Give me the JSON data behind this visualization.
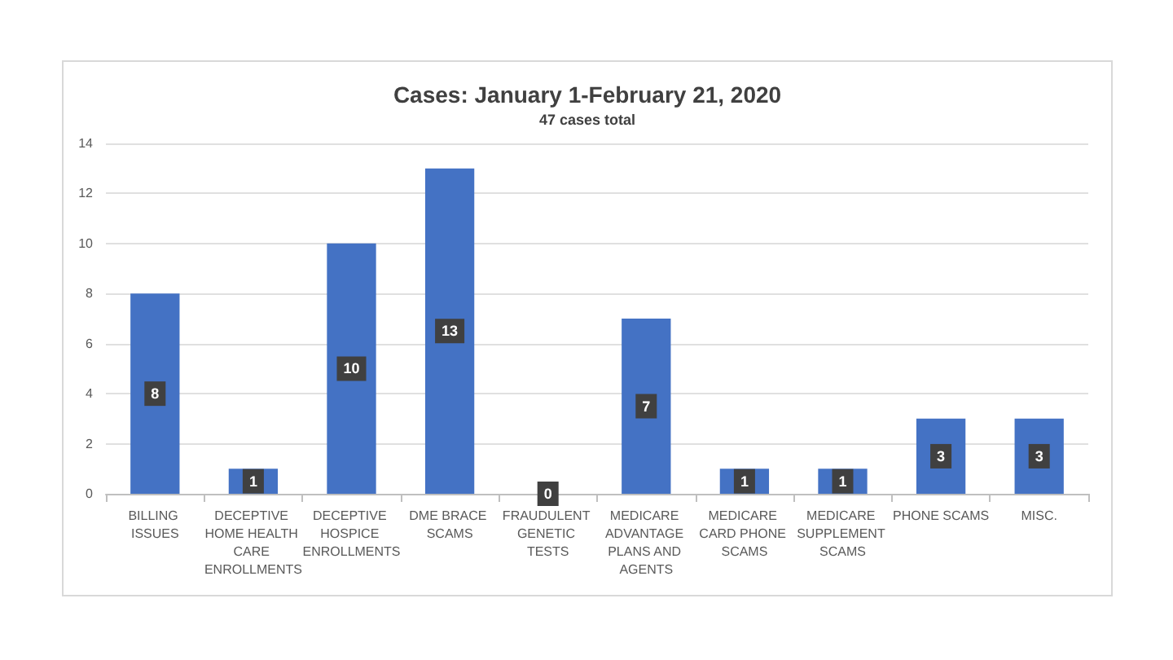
{
  "chart_data": {
    "type": "bar",
    "title": "Cases: January 1-February 21, 2020",
    "subtitle": "47 cases total",
    "categories": [
      "BILLING ISSUES",
      "DECEPTIVE HOME HEALTH CARE ENROLLMENTS",
      "DECEPTIVE HOSPICE ENROLLMENTS",
      "DME BRACE SCAMS",
      "FRAUDULENT GENETIC TESTS",
      "MEDICARE ADVANTAGE PLANS AND AGENTS",
      "MEDICARE CARD PHONE SCAMS",
      "MEDICARE SUPPLEMENT SCAMS",
      "PHONE SCAMS",
      "MISC."
    ],
    "values": [
      8,
      1,
      10,
      13,
      0,
      7,
      1,
      1,
      3,
      3
    ],
    "color": "#4472c4",
    "ylim": [
      0,
      14
    ],
    "yticks": [
      0,
      2,
      4,
      6,
      8,
      10,
      12,
      14
    ],
    "grid": "y",
    "data_labels": true
  }
}
